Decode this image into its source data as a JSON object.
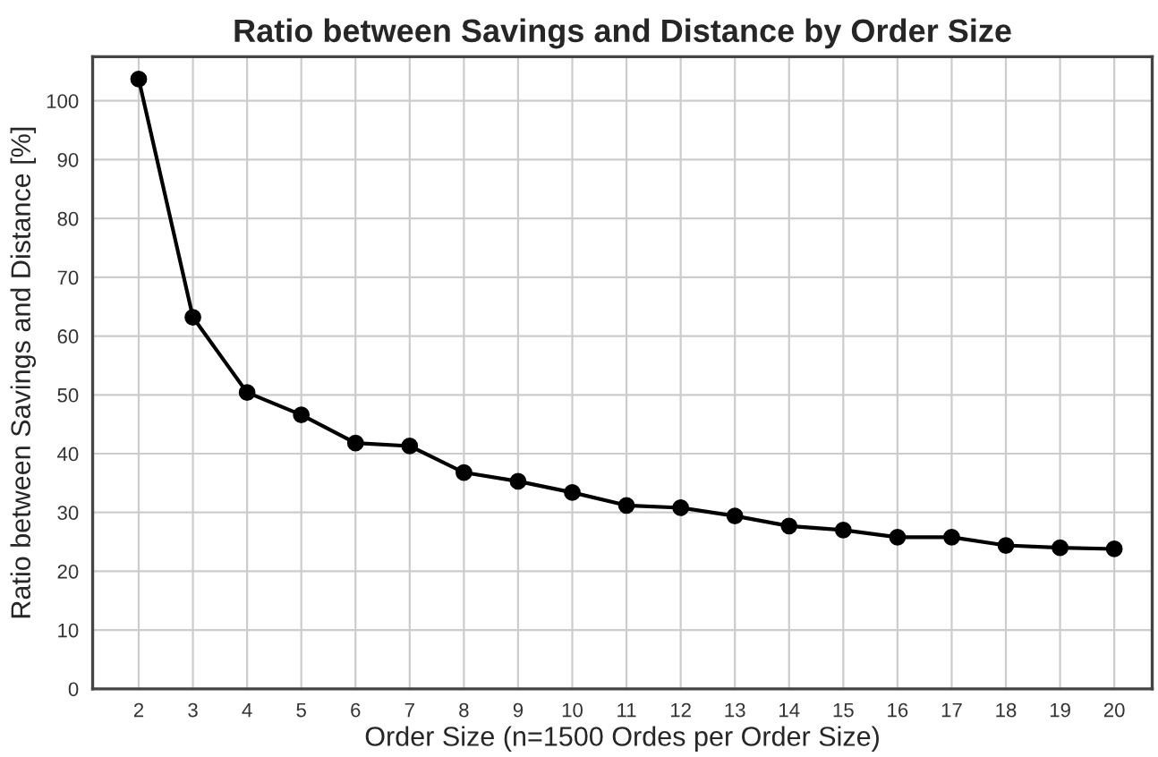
{
  "chart_data": {
    "type": "line",
    "title": "Ratio between Savings and Distance by Order Size",
    "xlabel": "Order Size (n=1500 Ordes per Order Size)",
    "ylabel": "Ratio between Savings and Distance [%]",
    "x": [
      2,
      3,
      4,
      5,
      6,
      7,
      8,
      9,
      10,
      11,
      12,
      13,
      14,
      15,
      16,
      17,
      18,
      19,
      20
    ],
    "series": [
      {
        "color": "#000000",
        "values": [
          103.7,
          63.2,
          50.4,
          46.6,
          41.8,
          41.3,
          36.8,
          35.3,
          33.4,
          31.2,
          30.8,
          29.4,
          27.7,
          27.0,
          25.8,
          25.8,
          24.4,
          24.0,
          23.8
        ]
      }
    ],
    "xlim": [
      1.15,
      20.7
    ],
    "xticks": [
      2,
      3,
      4,
      5,
      6,
      7,
      8,
      9,
      10,
      11,
      12,
      13,
      14,
      15,
      16,
      17,
      18,
      19,
      20
    ],
    "ylim": [
      0,
      107.5
    ],
    "yticks": [
      0,
      10,
      20,
      30,
      40,
      50,
      60,
      70,
      80,
      90,
      100
    ],
    "grid": true,
    "marker": "circle",
    "line_style": "solid"
  }
}
